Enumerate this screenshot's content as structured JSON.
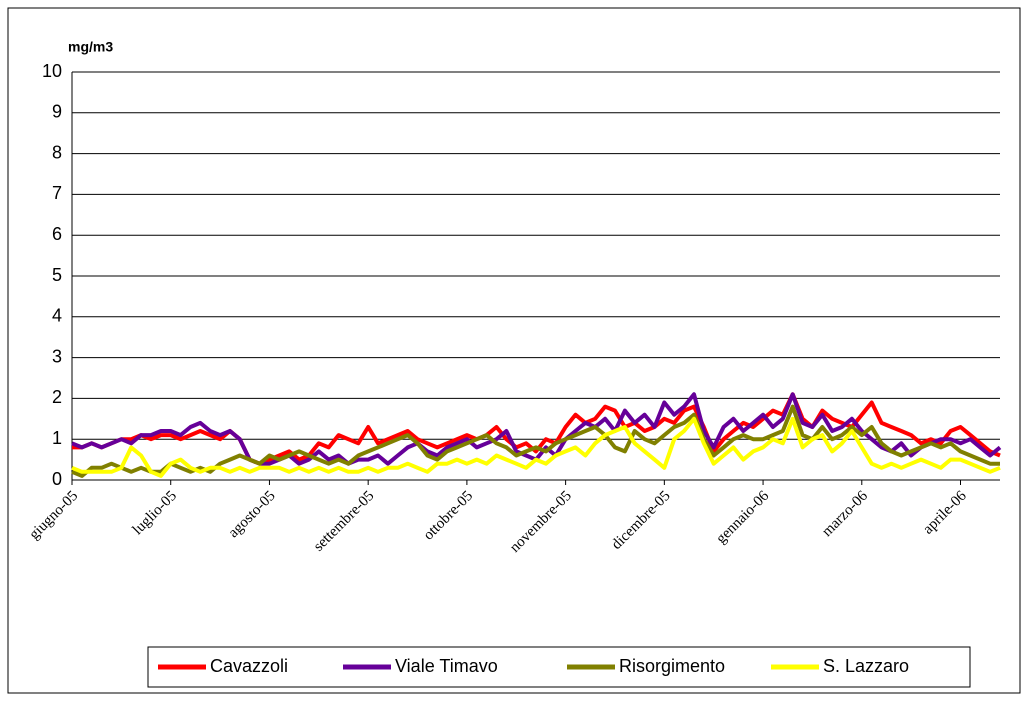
{
  "chart_data": {
    "type": "line",
    "y_label": "mg/m3",
    "categories": [
      "giugno-05",
      null,
      null,
      null,
      null,
      null,
      null,
      null,
      null,
      null,
      "luglio-05",
      null,
      null,
      null,
      null,
      null,
      null,
      null,
      null,
      null,
      "agosto-05",
      null,
      null,
      null,
      null,
      null,
      null,
      null,
      null,
      null,
      "settembre-05",
      null,
      null,
      null,
      null,
      null,
      null,
      null,
      null,
      null,
      "ottobre-05",
      null,
      null,
      null,
      null,
      null,
      null,
      null,
      null,
      null,
      "novembre-05",
      null,
      null,
      null,
      null,
      null,
      null,
      null,
      null,
      null,
      "dicembre-05",
      null,
      null,
      null,
      null,
      null,
      null,
      null,
      null,
      null,
      "gennaio-06",
      null,
      null,
      null,
      null,
      null,
      null,
      null,
      null,
      null,
      "marzo-06",
      null,
      null,
      null,
      null,
      null,
      null,
      null,
      null,
      null,
      "aprile-06",
      null,
      null,
      null,
      null
    ],
    "series": [
      {
        "name": "Cavazzoli",
        "color": "#ff0000",
        "values": [
          0.8,
          0.8,
          0.9,
          0.8,
          0.9,
          1.0,
          1.0,
          1.1,
          1.0,
          1.1,
          1.1,
          1.0,
          1.1,
          1.2,
          1.1,
          1.0,
          1.2,
          1.0,
          0.5,
          0.4,
          0.5,
          0.6,
          0.7,
          0.5,
          0.6,
          0.9,
          0.8,
          1.1,
          1.0,
          0.9,
          1.3,
          0.9,
          1.0,
          1.1,
          1.2,
          1.0,
          0.9,
          0.8,
          0.9,
          1.0,
          1.1,
          1.0,
          1.1,
          1.3,
          1.0,
          0.8,
          0.9,
          0.7,
          1.0,
          0.9,
          1.3,
          1.6,
          1.4,
          1.5,
          1.8,
          1.7,
          1.3,
          1.4,
          1.2,
          1.3,
          1.5,
          1.4,
          1.7,
          1.8,
          1.3,
          0.7,
          1.0,
          1.2,
          1.4,
          1.3,
          1.5,
          1.7,
          1.6,
          2.1,
          1.5,
          1.3,
          1.7,
          1.5,
          1.4,
          1.3,
          1.6,
          1.9,
          1.4,
          1.3,
          1.2,
          1.1,
          0.9,
          1.0,
          0.9,
          1.2,
          1.3,
          1.1,
          0.9,
          0.7,
          0.6
        ]
      },
      {
        "name": "Viale Timavo",
        "color": "#660099",
        "values": [
          0.9,
          0.8,
          0.9,
          0.8,
          0.9,
          1.0,
          0.9,
          1.1,
          1.1,
          1.2,
          1.2,
          1.1,
          1.3,
          1.4,
          1.2,
          1.1,
          1.2,
          1.0,
          0.5,
          0.4,
          0.4,
          0.5,
          0.6,
          0.4,
          0.5,
          0.7,
          0.5,
          0.6,
          0.4,
          0.5,
          0.5,
          0.6,
          0.4,
          0.6,
          0.8,
          0.9,
          0.7,
          0.6,
          0.8,
          0.9,
          1.0,
          0.8,
          0.9,
          1.0,
          1.2,
          0.7,
          0.6,
          0.5,
          0.8,
          0.6,
          1.0,
          1.2,
          1.4,
          1.3,
          1.5,
          1.2,
          1.7,
          1.4,
          1.6,
          1.3,
          1.9,
          1.6,
          1.8,
          2.1,
          1.2,
          0.8,
          1.3,
          1.5,
          1.2,
          1.4,
          1.6,
          1.3,
          1.5,
          2.1,
          1.4,
          1.3,
          1.6,
          1.2,
          1.3,
          1.5,
          1.2,
          1.0,
          0.8,
          0.7,
          0.9,
          0.6,
          0.8,
          0.9,
          1.0,
          1.0,
          0.9,
          1.0,
          0.8,
          0.6,
          0.8
        ]
      },
      {
        "name": "Risorgimento",
        "color": "#808000",
        "values": [
          0.2,
          0.1,
          0.3,
          0.3,
          0.4,
          0.3,
          0.2,
          0.3,
          0.2,
          0.2,
          0.4,
          0.3,
          0.2,
          0.3,
          0.2,
          0.4,
          0.5,
          0.6,
          0.5,
          0.4,
          0.6,
          0.5,
          0.6,
          0.7,
          0.6,
          0.5,
          0.4,
          0.5,
          0.4,
          0.6,
          0.7,
          0.8,
          0.9,
          1.0,
          1.1,
          0.9,
          0.6,
          0.5,
          0.7,
          0.8,
          0.9,
          1.0,
          1.1,
          0.9,
          0.8,
          0.6,
          0.7,
          0.8,
          0.7,
          0.9,
          1.0,
          1.1,
          1.2,
          1.3,
          1.1,
          0.8,
          0.7,
          1.2,
          1.0,
          0.9,
          1.1,
          1.3,
          1.4,
          1.6,
          1.0,
          0.6,
          0.8,
          1.0,
          1.1,
          1.0,
          1.0,
          1.1,
          1.2,
          1.8,
          1.1,
          1.0,
          1.3,
          1.0,
          1.1,
          1.3,
          1.1,
          1.3,
          0.9,
          0.7,
          0.6,
          0.7,
          0.8,
          0.9,
          0.8,
          0.9,
          0.7,
          0.6,
          0.5,
          0.4,
          0.4
        ]
      },
      {
        "name": "S. Lazzaro",
        "color": "#ffff00",
        "values": [
          0.3,
          0.2,
          0.2,
          0.2,
          0.2,
          0.3,
          0.8,
          0.6,
          0.2,
          0.1,
          0.4,
          0.5,
          0.3,
          0.2,
          0.3,
          0.3,
          0.2,
          0.3,
          0.2,
          0.3,
          0.3,
          0.3,
          0.2,
          0.3,
          0.2,
          0.3,
          0.2,
          0.3,
          0.2,
          0.2,
          0.3,
          0.2,
          0.3,
          0.3,
          0.4,
          0.3,
          0.2,
          0.4,
          0.4,
          0.5,
          0.4,
          0.5,
          0.4,
          0.6,
          0.5,
          0.4,
          0.3,
          0.5,
          0.4,
          0.6,
          0.7,
          0.8,
          0.6,
          0.9,
          1.1,
          1.2,
          1.3,
          0.9,
          0.7,
          0.5,
          0.3,
          1.0,
          1.2,
          1.5,
          0.9,
          0.4,
          0.6,
          0.8,
          0.5,
          0.7,
          0.8,
          1.0,
          0.9,
          1.5,
          0.8,
          1.0,
          1.1,
          0.7,
          0.9,
          1.2,
          0.8,
          0.4,
          0.3,
          0.4,
          0.3,
          0.4,
          0.5,
          0.4,
          0.3,
          0.5,
          0.5,
          0.4,
          0.3,
          0.2,
          0.3
        ]
      }
    ],
    "ylim": [
      0,
      10
    ],
    "yticks": [
      0,
      1,
      2,
      3,
      4,
      5,
      6,
      7,
      8,
      9,
      10
    ],
    "grid": true,
    "legend": "bottom"
  }
}
